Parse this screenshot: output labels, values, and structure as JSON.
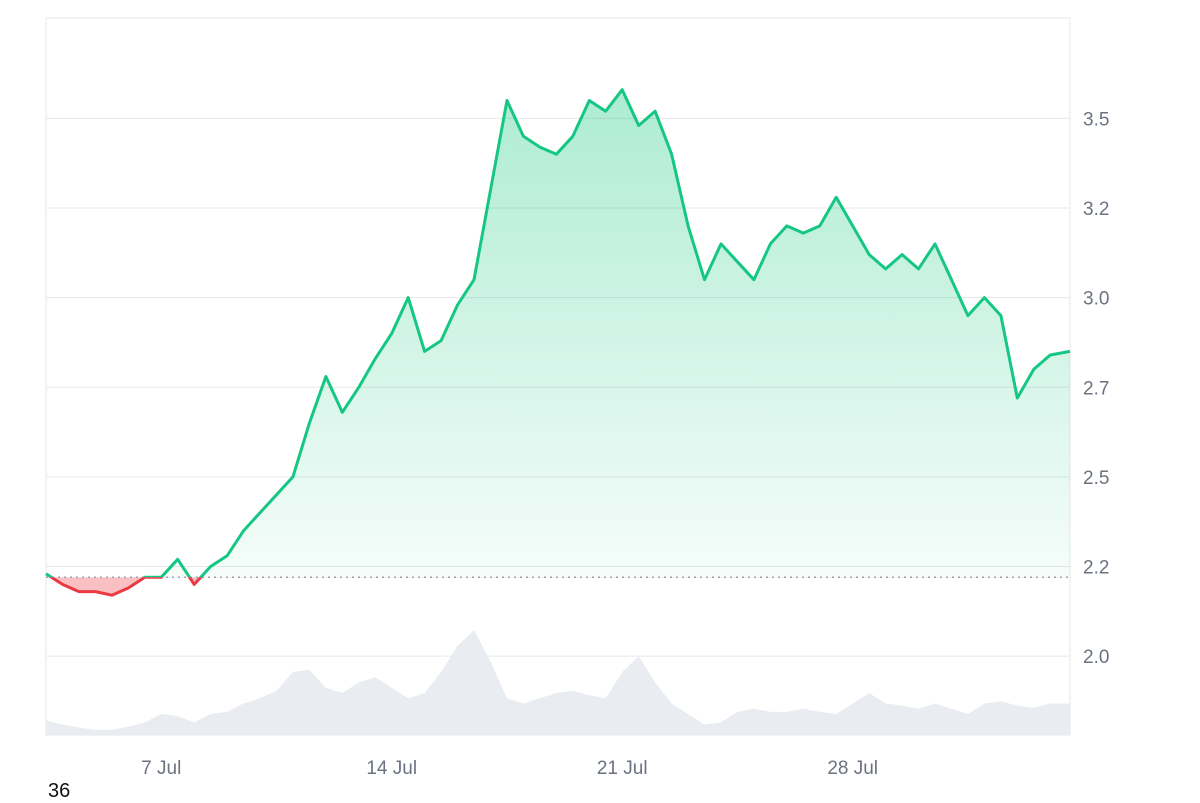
{
  "chart_data": {
    "type": "area",
    "baseline": 2.22,
    "ylim": [
      1.78,
      3.78
    ],
    "y_ticks": [
      "3.5",
      "3.2",
      "3.0",
      "2.7",
      "2.5",
      "2.2",
      "2.0"
    ],
    "y_tick_values": [
      3.5,
      3.25,
      3.0,
      2.75,
      2.5,
      2.25,
      2.0
    ],
    "x_ticks": [
      "7 Jul",
      "14 Jul",
      "21 Jul",
      "28 Jul"
    ],
    "x_tick_values": [
      6.5,
      13.5,
      20.5,
      27.5
    ],
    "xlim": [
      3.0,
      34.1
    ],
    "x": [
      3.0,
      3.5,
      4.0,
      4.5,
      5.0,
      5.5,
      6.0,
      6.5,
      7.0,
      7.5,
      8.0,
      8.5,
      9.0,
      9.5,
      10.0,
      10.5,
      11.0,
      11.5,
      12.0,
      12.5,
      13.0,
      13.5,
      14.0,
      14.5,
      15.0,
      15.5,
      16.0,
      16.5,
      17.0,
      17.5,
      18.0,
      18.5,
      19.0,
      19.5,
      20.0,
      20.5,
      21.0,
      21.5,
      22.0,
      22.5,
      23.0,
      23.5,
      24.0,
      24.5,
      25.0,
      25.5,
      26.0,
      26.5,
      27.0,
      27.5,
      28.0,
      28.5,
      29.0,
      29.5,
      30.0,
      30.5,
      31.0,
      31.5,
      32.0,
      32.5,
      33.0,
      33.5,
      34.1
    ],
    "y": [
      2.23,
      2.2,
      2.18,
      2.18,
      2.17,
      2.19,
      2.22,
      2.22,
      2.27,
      2.2,
      2.25,
      2.28,
      2.35,
      2.4,
      2.45,
      2.5,
      2.65,
      2.78,
      2.68,
      2.75,
      2.83,
      2.9,
      3.0,
      2.85,
      2.88,
      2.98,
      3.05,
      3.3,
      3.55,
      3.45,
      3.42,
      3.4,
      3.45,
      3.55,
      3.52,
      3.58,
      3.48,
      3.52,
      3.4,
      3.2,
      3.05,
      3.15,
      3.1,
      3.05,
      3.15,
      3.2,
      3.18,
      3.2,
      3.28,
      3.2,
      3.12,
      3.08,
      3.12,
      3.08,
      3.15,
      3.05,
      2.95,
      3.0,
      2.95,
      2.72,
      2.8,
      2.84,
      2.85
    ],
    "volume": [
      0.14,
      0.1,
      0.07,
      0.05,
      0.05,
      0.08,
      0.12,
      0.2,
      0.18,
      0.12,
      0.2,
      0.22,
      0.3,
      0.35,
      0.42,
      0.6,
      0.62,
      0.45,
      0.4,
      0.5,
      0.55,
      0.45,
      0.35,
      0.4,
      0.6,
      0.85,
      1.0,
      0.7,
      0.35,
      0.3,
      0.35,
      0.4,
      0.42,
      0.38,
      0.35,
      0.6,
      0.75,
      0.5,
      0.3,
      0.2,
      0.1,
      0.12,
      0.22,
      0.25,
      0.22,
      0.22,
      0.25,
      0.22,
      0.2,
      0.3,
      0.4,
      0.3,
      0.28,
      0.25,
      0.3,
      0.25,
      0.2,
      0.3,
      0.32,
      0.28,
      0.26,
      0.3,
      0.3
    ],
    "colors": {
      "up_line": "#16c784",
      "down_line": "#ea3943",
      "down_fill": "#f8b4b8",
      "volume": "#e9ecf0",
      "baseline": "#9ca3af"
    },
    "grid": true
  },
  "footer": {
    "label": "36"
  }
}
